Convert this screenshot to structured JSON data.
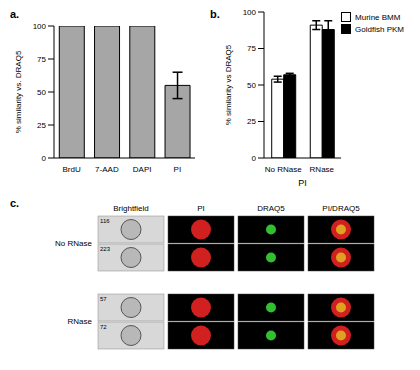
{
  "chart_data": [
    {
      "type": "bar",
      "title": "a.",
      "y_label": "% similarity vs. DRAQ5",
      "categories": [
        "BrdU",
        "7-AAD",
        "DAPI",
        "PI"
      ],
      "values": [
        100,
        100,
        100,
        55
      ],
      "errors": [
        null,
        null,
        null,
        10
      ],
      "color": "#a6a6a6",
      "ylim": [
        0,
        100
      ],
      "yticks": [
        0,
        25,
        50,
        75,
        100
      ]
    },
    {
      "type": "bar",
      "title": "b.",
      "y_label": "% similarity vs DRAQ5",
      "x_label": "PI",
      "categories": [
        "No RNase",
        "RNase"
      ],
      "series": [
        {
          "name": "Murine BMM",
          "color": "#ffffff",
          "values": [
            54,
            91
          ],
          "errors": [
            2,
            3
          ]
        },
        {
          "name": "Goldfish PKM",
          "color": "#000000",
          "values": [
            57,
            88
          ],
          "errors": [
            1,
            6
          ]
        }
      ],
      "ylim": [
        0,
        100
      ],
      "yticks": [
        0,
        25,
        50,
        75,
        100
      ],
      "legend": "upper right"
    }
  ],
  "panel_c": {
    "title": "c.",
    "columns": [
      "Brightfield",
      "PI",
      "DRAQ5",
      "PI/DRAQ5"
    ],
    "rows": [
      {
        "label": "No RNase",
        "images": [
          "116",
          "223"
        ]
      },
      {
        "label": "RNase",
        "images": [
          "57",
          "72"
        ]
      }
    ]
  }
}
